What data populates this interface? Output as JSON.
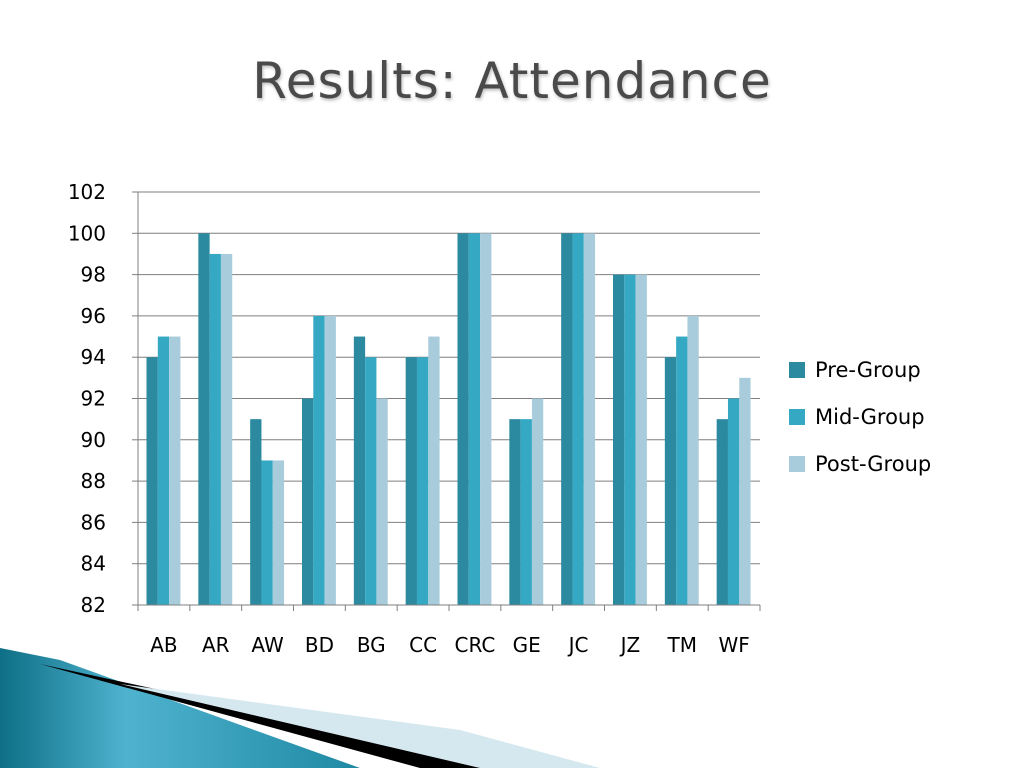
{
  "slide": {
    "title": "Results: Attendance"
  },
  "chart_data": {
    "type": "bar",
    "title": "Results: Attendance",
    "xlabel": "",
    "ylabel": "",
    "categories": [
      "AB",
      "AR",
      "AW",
      "BD",
      "BG",
      "CC",
      "CRC",
      "GE",
      "JC",
      "JZ",
      "TM",
      "WF"
    ],
    "series": [
      {
        "name": "Pre-Group",
        "color": "#2B8A9F",
        "values": [
          94,
          100,
          91,
          92,
          95,
          94,
          100,
          91,
          100,
          98,
          94,
          91
        ]
      },
      {
        "name": "Mid-Group",
        "color": "#35A9C3",
        "values": [
          95,
          99,
          89,
          96,
          94,
          94,
          100,
          91,
          100,
          98,
          95,
          92
        ]
      },
      {
        "name": "Post-Group",
        "color": "#A8CCDB",
        "values": [
          95,
          99,
          89,
          96,
          92,
          95,
          100,
          92,
          100,
          98,
          96,
          93
        ]
      }
    ],
    "ylim": [
      82,
      102
    ],
    "yticks": [
      82,
      84,
      86,
      88,
      90,
      92,
      94,
      96,
      98,
      100,
      102
    ],
    "grid": true,
    "legend_position": "right"
  }
}
